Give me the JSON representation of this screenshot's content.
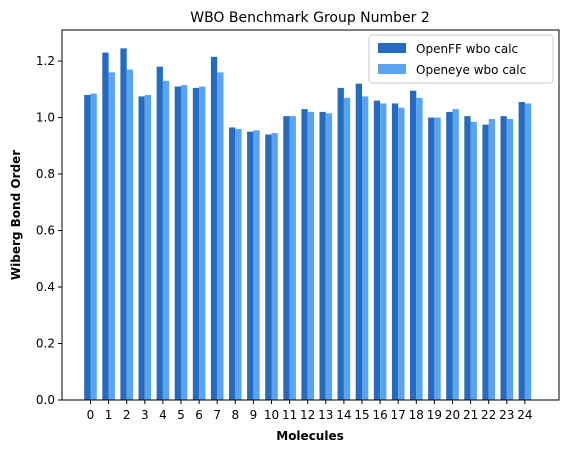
{
  "chart_data": {
    "type": "bar",
    "title": "WBO Benchmark Group Number 2",
    "xlabel": "Molecules",
    "ylabel": "Wiberg Bond Order",
    "categories": [
      "0",
      "1",
      "2",
      "3",
      "4",
      "5",
      "6",
      "7",
      "8",
      "9",
      "10",
      "11",
      "12",
      "13",
      "14",
      "15",
      "16",
      "17",
      "18",
      "19",
      "20",
      "21",
      "22",
      "23",
      "24"
    ],
    "series": [
      {
        "name": "OpenFF wbo calc",
        "color": "#236cc2",
        "values": [
          1.08,
          1.23,
          1.245,
          1.075,
          1.18,
          1.11,
          1.105,
          1.215,
          0.965,
          0.95,
          0.94,
          1.005,
          1.03,
          1.02,
          1.105,
          1.12,
          1.06,
          1.05,
          1.095,
          1.0,
          1.02,
          1.005,
          0.975,
          1.005,
          1.055
        ]
      },
      {
        "name": "Openeye wbo calc",
        "color": "#5ba3ee",
        "values": [
          1.085,
          1.16,
          1.17,
          1.08,
          1.13,
          1.115,
          1.11,
          1.16,
          0.96,
          0.955,
          0.945,
          1.005,
          1.02,
          1.015,
          1.07,
          1.075,
          1.05,
          1.035,
          1.07,
          1.0,
          1.03,
          0.985,
          0.995,
          0.995,
          1.05
        ]
      }
    ],
    "ylim": [
      0,
      1.31
    ],
    "yticks": [
      "0.0",
      "0.2",
      "0.4",
      "0.6",
      "0.8",
      "1.0",
      "1.2"
    ],
    "legend": "top-right",
    "grid": false
  }
}
